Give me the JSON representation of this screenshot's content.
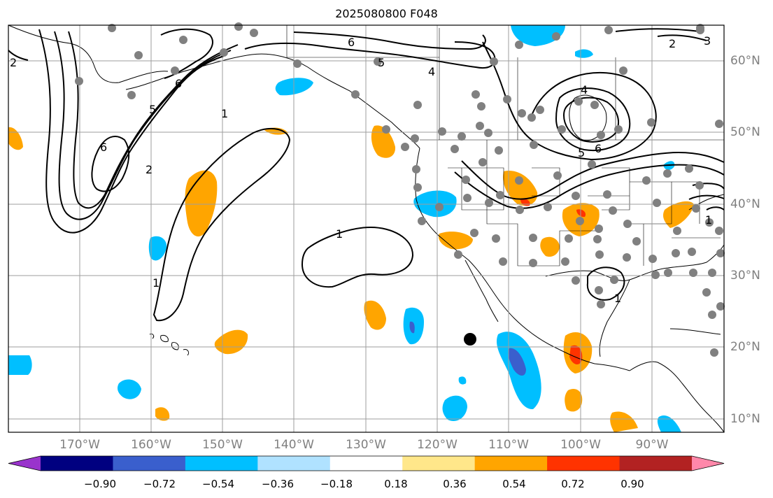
{
  "title": "2025080800 F048",
  "lon_labels": [
    "170°W",
    "160°W",
    "150°W",
    "140°W",
    "130°W",
    "120°W",
    "110°W",
    "100°W",
    "90°W"
  ],
  "lat_labels": [
    "60°N",
    "50°N",
    "40°N",
    "30°N",
    "20°N",
    "10°N"
  ],
  "colorbar": {
    "ticks": [
      "−0.90",
      "−0.72",
      "−0.54",
      "−0.36",
      "−0.18",
      "0.18",
      "0.36",
      "0.54",
      "0.72",
      "0.90"
    ],
    "colors": [
      "#9933cc",
      "#000080",
      "#3a5fcd",
      "#00bfff",
      "#b0e2ff",
      "#ffffff",
      "#ffe78a",
      "#ffa500",
      "#ff3300",
      "#b22222",
      "#ff88aa"
    ]
  },
  "contour_labels": [
    "6",
    "5",
    "4",
    "2",
    "5",
    "6",
    "1",
    "6",
    "2",
    "1",
    "4",
    "5",
    "6",
    "1",
    "1",
    "1",
    "2",
    "3"
  ],
  "colors": {
    "contour": "#000000",
    "coast": "#000000",
    "grid": "#9e9e9e",
    "dot": "#808080",
    "marker": "#000000"
  }
}
